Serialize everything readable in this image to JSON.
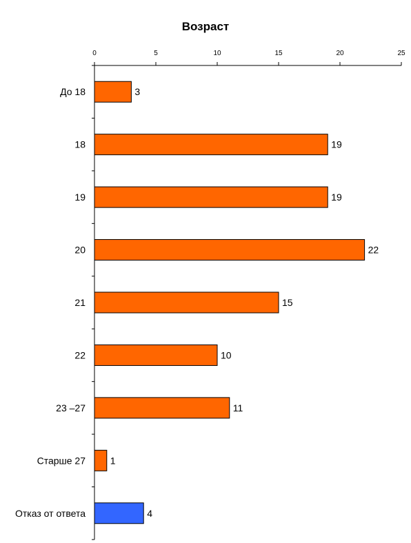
{
  "chart_data": {
    "type": "bar",
    "orientation": "horizontal",
    "title": "Возраст",
    "categories": [
      "До 18",
      "18",
      "19",
      "20",
      "21",
      "22",
      "23 –27",
      "Старше 27",
      "Отказ от ответа"
    ],
    "values": [
      3,
      19,
      19,
      22,
      15,
      10,
      11,
      1,
      4
    ],
    "xlim": [
      0,
      25
    ],
    "xticks": [
      0,
      5,
      10,
      15,
      20,
      25
    ],
    "xaxis_position": "top",
    "grid": false,
    "legend": "none",
    "bar_colors": [
      "#FF6600",
      "#FF6600",
      "#FF6600",
      "#FF6600",
      "#FF6600",
      "#FF6600",
      "#FF6600",
      "#FF6600",
      "#3366FF"
    ]
  }
}
